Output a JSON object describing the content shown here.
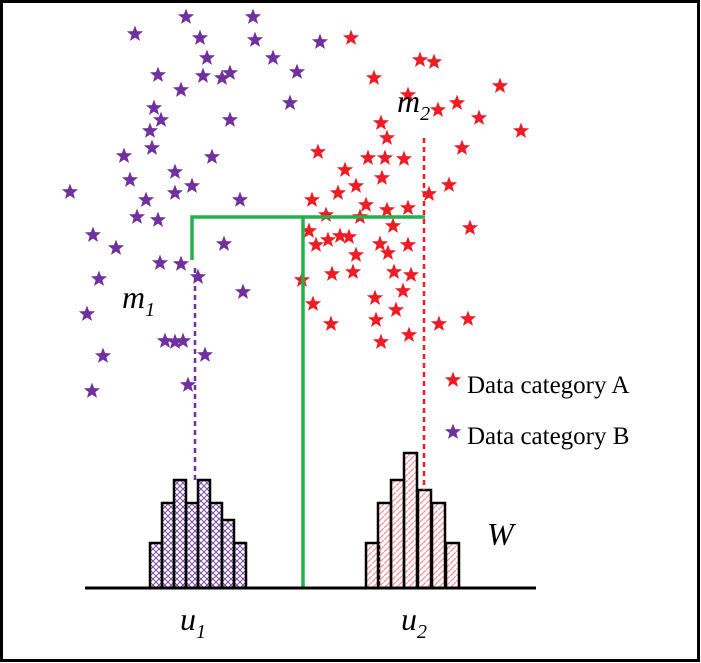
{
  "labels": {
    "m1": {
      "main": "m",
      "sub": "1"
    },
    "m2": {
      "main": "m",
      "sub": "2"
    },
    "u1": {
      "main": "u",
      "sub": "1"
    },
    "u2": {
      "main": "u",
      "sub": "2"
    },
    "w": "W"
  },
  "legend": {
    "a": "Data category A",
    "b": "Data category B"
  }
}
